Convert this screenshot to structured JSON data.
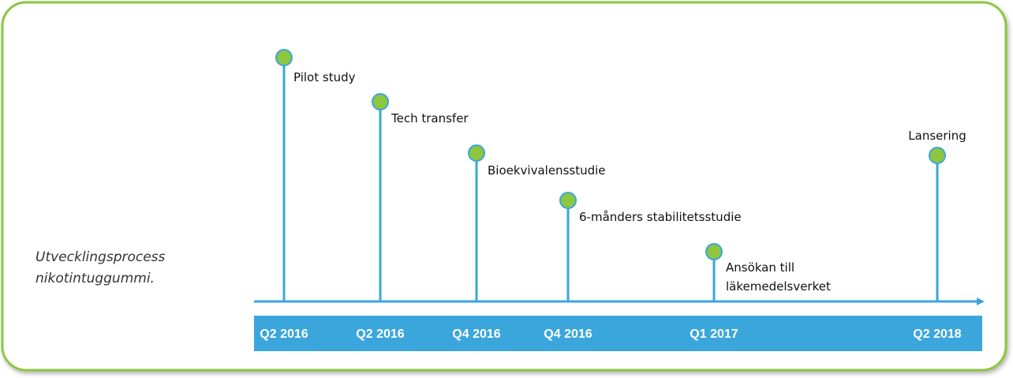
{
  "caption": [
    "Utvecklingsprocess",
    "nikotintuggummi."
  ],
  "events": [
    {
      "label": [
        "Pilot study"
      ],
      "date": "Q2 2016"
    },
    {
      "label": [
        "Tech transfer"
      ],
      "date": "Q2 2016"
    },
    {
      "label": [
        "Bioekvivalensstudie"
      ],
      "date": "Q4 2016"
    },
    {
      "label": [
        "6-månders stabilitetsstudie"
      ],
      "date": "Q4 2016"
    },
    {
      "label": [
        "Ansökan till",
        "läkemedelsverket"
      ],
      "date": "Q1 2017"
    },
    {
      "label": [
        "Lansering"
      ],
      "date": "Q2 2018"
    }
  ]
}
